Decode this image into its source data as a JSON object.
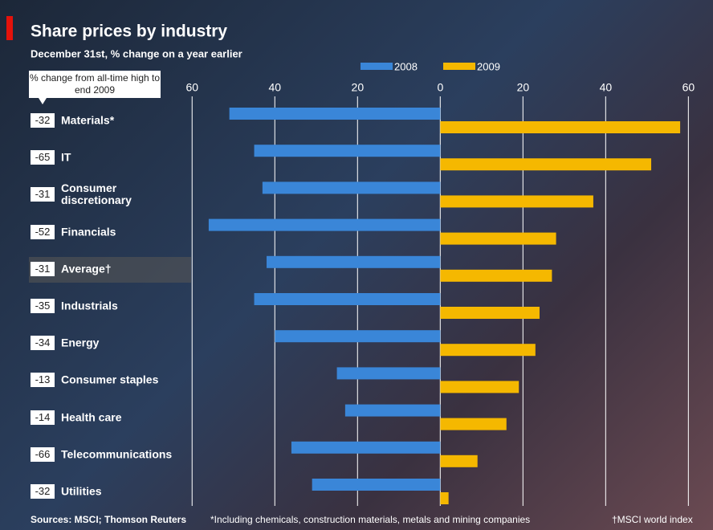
{
  "chart_data": {
    "type": "bar",
    "orientation": "horizontal",
    "title": "Share prices by industry",
    "subtitle": "December 31st, % change on a year earlier",
    "column_header": "% change from all-time high to end 2009",
    "categories": [
      "Materials*",
      "IT",
      "Consumer discretionary",
      "Financials",
      "Average†",
      "Industrials",
      "Energy",
      "Consumer staples",
      "Health care",
      "Telecommunications",
      "Utilities"
    ],
    "all_time_high_change": [
      -32,
      -65,
      -31,
      -52,
      -31,
      -35,
      -34,
      -13,
      -14,
      -66,
      -32
    ],
    "series": [
      {
        "name": "2008",
        "color": "#3a86d8",
        "values": [
          -51,
          -45,
          -43,
          -56,
          -42,
          -45,
          -40,
          -25,
          -23,
          -36,
          -31
        ]
      },
      {
        "name": "2009",
        "color": "#f5b800",
        "values": [
          58,
          51,
          37,
          28,
          27,
          24,
          23,
          19,
          16,
          9,
          2
        ]
      }
    ],
    "xlim": [
      -62,
      64
    ],
    "xticks": [
      {
        "value": -60,
        "label": "60"
      },
      {
        "value": -40,
        "label": "40"
      },
      {
        "value": -20,
        "label": "20"
      },
      0,
      20,
      40,
      60
    ],
    "grid": true,
    "sources": "Sources: MSCI; Thomson Reuters",
    "footnotes": [
      "*Including chemicals, construction materials, metals and mining companies",
      "†MSCI world index"
    ]
  }
}
